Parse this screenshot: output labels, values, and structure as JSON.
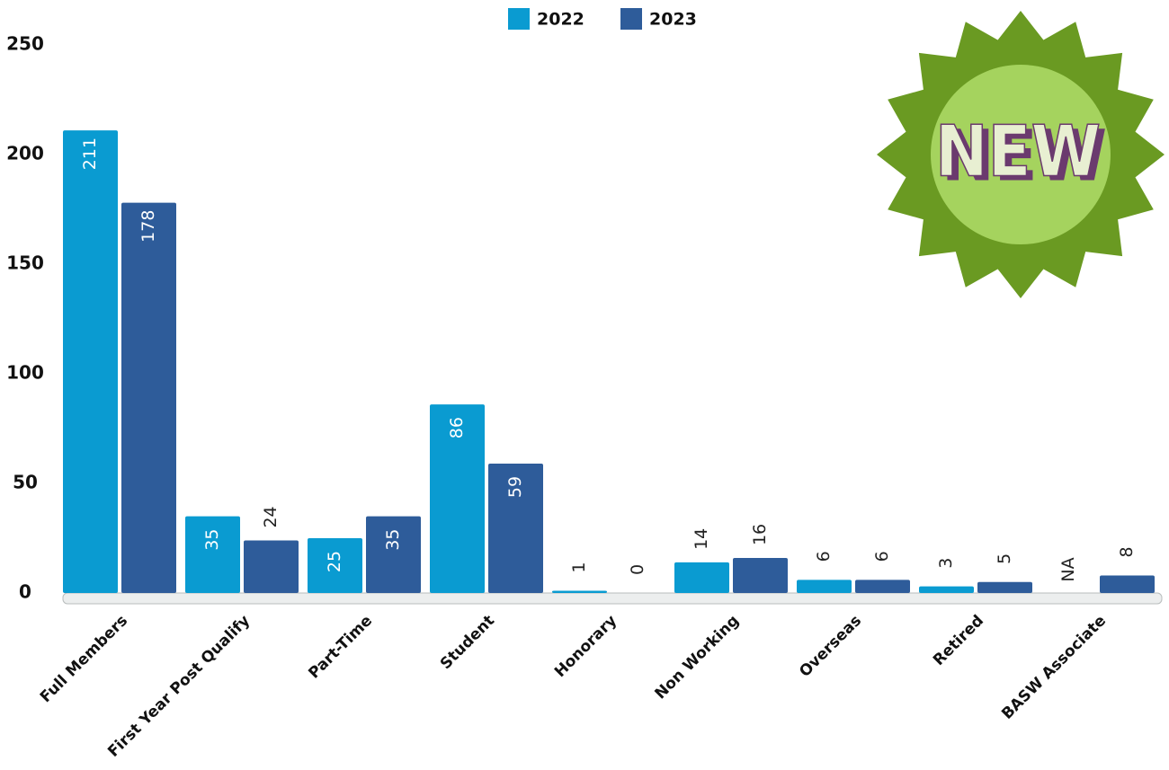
{
  "chart_data": {
    "type": "bar",
    "categories": [
      "Full Members",
      "First Year Post Qualify",
      "Part-Time",
      "Student",
      "Honorary",
      "Non Working",
      "Overseas",
      "Retired",
      "BASW Associate"
    ],
    "series": [
      {
        "name": "2022",
        "color": "#0a9bd1",
        "values": [
          211,
          35,
          25,
          86,
          1,
          14,
          6,
          3,
          null
        ],
        "value_labels": [
          "211",
          "35",
          "25",
          "86",
          "1",
          "14",
          "6",
          "3",
          "NA"
        ]
      },
      {
        "name": "2023",
        "color": "#2e5c9a",
        "values": [
          178,
          24,
          35,
          59,
          0,
          16,
          6,
          5,
          8
        ]
      }
    ],
    "ylim": [
      0,
      250
    ],
    "yticks": [
      0,
      50,
      100,
      150,
      200,
      250
    ],
    "grid": false,
    "legend": "top",
    "annotations": [
      "NEW"
    ]
  }
}
